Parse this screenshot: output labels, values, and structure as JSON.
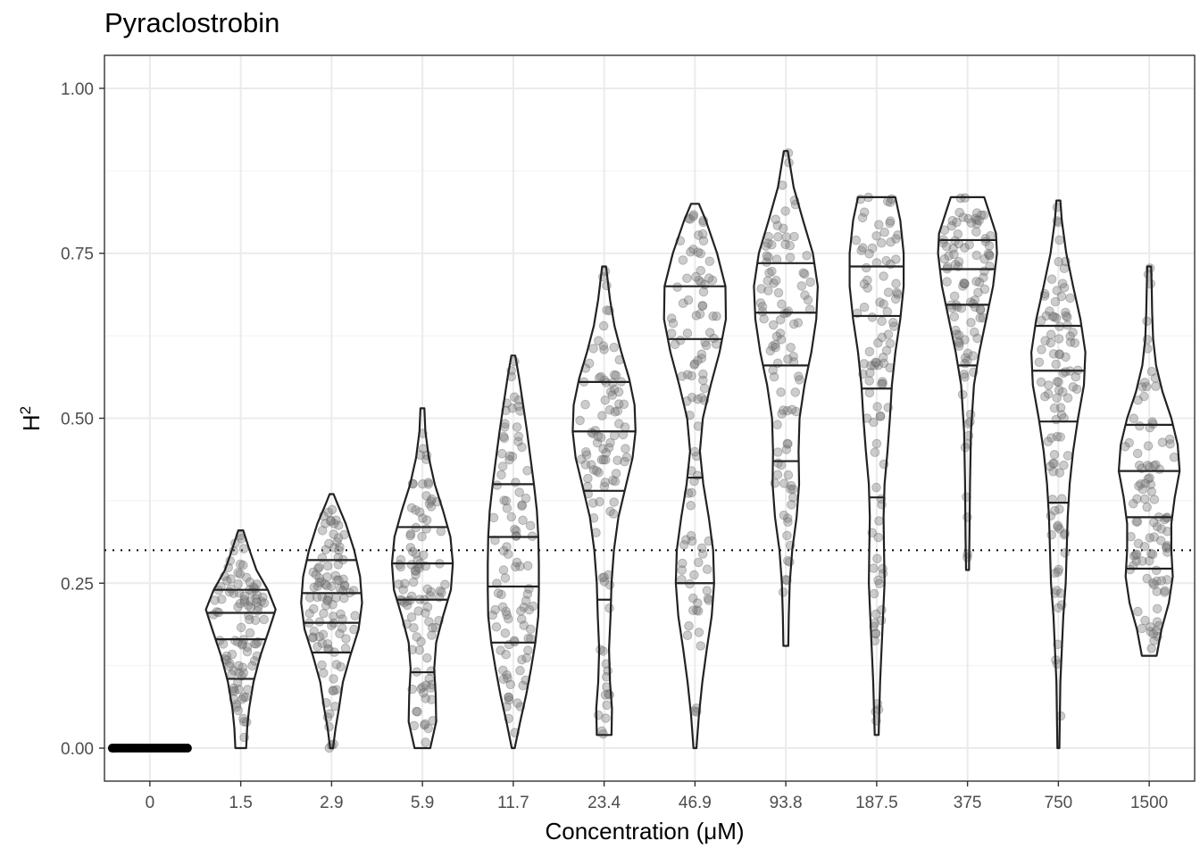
{
  "chart_data": {
    "type": "violin",
    "title": "Pyraclostrobin",
    "xlabel": "Concentration (μM)",
    "ylabel": "H",
    "ylabel_superscript": "2",
    "ylim": [
      -0.05,
      1.05
    ],
    "y_ticks": [
      "0.00",
      "0.25",
      "0.50",
      "0.75",
      "1.00"
    ],
    "reference_line": {
      "y": 0.3,
      "style": "dotted"
    },
    "grid": true,
    "categories": [
      "0",
      "1.5",
      "2.9",
      "5.9",
      "11.7",
      "23.4",
      "46.9",
      "93.8",
      "187.5",
      "375",
      "750",
      "1500"
    ],
    "violins": [
      {
        "category": "0",
        "min": 0,
        "max": 0,
        "quantiles": [],
        "profile": []
      },
      {
        "category": "1.5",
        "min": 0.0,
        "max": 0.33,
        "quantiles": [
          0.105,
          0.165,
          0.205,
          0.24
        ],
        "profile": [
          [
            0.0,
            0.11
          ],
          [
            0.03,
            0.13
          ],
          [
            0.06,
            0.17
          ],
          [
            0.1,
            0.26
          ],
          [
            0.14,
            0.4
          ],
          [
            0.18,
            0.58
          ],
          [
            0.21,
            0.71
          ],
          [
            0.24,
            0.55
          ],
          [
            0.27,
            0.32
          ],
          [
            0.3,
            0.18
          ],
          [
            0.33,
            0.05
          ]
        ]
      },
      {
        "category": "2.9",
        "min": 0.0,
        "max": 0.385,
        "quantiles": [
          0.145,
          0.19,
          0.235,
          0.285
        ],
        "profile": [
          [
            0.0,
            0.03
          ],
          [
            0.03,
            0.08
          ],
          [
            0.06,
            0.15
          ],
          [
            0.1,
            0.23
          ],
          [
            0.14,
            0.38
          ],
          [
            0.18,
            0.55
          ],
          [
            0.22,
            0.62
          ],
          [
            0.26,
            0.58
          ],
          [
            0.3,
            0.46
          ],
          [
            0.34,
            0.29
          ],
          [
            0.37,
            0.12
          ],
          [
            0.385,
            0.04
          ]
        ]
      },
      {
        "category": "5.9",
        "min": 0.0,
        "max": 0.515,
        "quantiles": [
          0.115,
          0.225,
          0.28,
          0.335
        ],
        "profile": [
          [
            0.0,
            0.16
          ],
          [
            0.04,
            0.28
          ],
          [
            0.08,
            0.27
          ],
          [
            0.12,
            0.24
          ],
          [
            0.16,
            0.28
          ],
          [
            0.2,
            0.42
          ],
          [
            0.24,
            0.58
          ],
          [
            0.28,
            0.62
          ],
          [
            0.32,
            0.57
          ],
          [
            0.36,
            0.42
          ],
          [
            0.4,
            0.25
          ],
          [
            0.44,
            0.13
          ],
          [
            0.48,
            0.06
          ],
          [
            0.515,
            0.04
          ]
        ]
      },
      {
        "category": "11.7",
        "min": 0.0,
        "max": 0.595,
        "quantiles": [
          0.16,
          0.245,
          0.32,
          0.4
        ],
        "profile": [
          [
            0.0,
            0.03
          ],
          [
            0.04,
            0.14
          ],
          [
            0.08,
            0.26
          ],
          [
            0.12,
            0.36
          ],
          [
            0.16,
            0.45
          ],
          [
            0.2,
            0.51
          ],
          [
            0.24,
            0.52
          ],
          [
            0.28,
            0.52
          ],
          [
            0.32,
            0.51
          ],
          [
            0.36,
            0.48
          ],
          [
            0.4,
            0.42
          ],
          [
            0.44,
            0.35
          ],
          [
            0.48,
            0.28
          ],
          [
            0.52,
            0.2
          ],
          [
            0.56,
            0.12
          ],
          [
            0.595,
            0.04
          ]
        ]
      },
      {
        "category": "23.4",
        "min": 0.02,
        "max": 0.73,
        "quantiles": [
          0.225,
          0.39,
          0.48,
          0.555
        ],
        "profile": [
          [
            0.02,
            0.15
          ],
          [
            0.06,
            0.16
          ],
          [
            0.1,
            0.12
          ],
          [
            0.15,
            0.1
          ],
          [
            0.2,
            0.13
          ],
          [
            0.25,
            0.15
          ],
          [
            0.3,
            0.2
          ],
          [
            0.35,
            0.29
          ],
          [
            0.4,
            0.45
          ],
          [
            0.44,
            0.58
          ],
          [
            0.48,
            0.64
          ],
          [
            0.52,
            0.62
          ],
          [
            0.56,
            0.51
          ],
          [
            0.6,
            0.35
          ],
          [
            0.64,
            0.21
          ],
          [
            0.68,
            0.12
          ],
          [
            0.73,
            0.04
          ]
        ]
      },
      {
        "category": "46.9",
        "min": 0.0,
        "max": 0.825,
        "quantiles": [
          0.25,
          0.41,
          0.62,
          0.7
        ],
        "profile": [
          [
            0.0,
            0.03
          ],
          [
            0.05,
            0.08
          ],
          [
            0.1,
            0.15
          ],
          [
            0.15,
            0.24
          ],
          [
            0.2,
            0.34
          ],
          [
            0.25,
            0.39
          ],
          [
            0.3,
            0.37
          ],
          [
            0.35,
            0.28
          ],
          [
            0.4,
            0.17
          ],
          [
            0.45,
            0.1
          ],
          [
            0.5,
            0.16
          ],
          [
            0.55,
            0.32
          ],
          [
            0.6,
            0.5
          ],
          [
            0.65,
            0.63
          ],
          [
            0.7,
            0.62
          ],
          [
            0.75,
            0.45
          ],
          [
            0.8,
            0.22
          ],
          [
            0.825,
            0.08
          ]
        ]
      },
      {
        "category": "93.8",
        "min": 0.155,
        "max": 0.905,
        "quantiles": [
          0.435,
          0.58,
          0.66,
          0.735
        ],
        "profile": [
          [
            0.155,
            0.05
          ],
          [
            0.2,
            0.06
          ],
          [
            0.25,
            0.08
          ],
          [
            0.3,
            0.13
          ],
          [
            0.35,
            0.22
          ],
          [
            0.4,
            0.27
          ],
          [
            0.45,
            0.26
          ],
          [
            0.5,
            0.28
          ],
          [
            0.55,
            0.38
          ],
          [
            0.6,
            0.52
          ],
          [
            0.65,
            0.62
          ],
          [
            0.7,
            0.65
          ],
          [
            0.75,
            0.55
          ],
          [
            0.8,
            0.35
          ],
          [
            0.85,
            0.16
          ],
          [
            0.905,
            0.04
          ]
        ]
      },
      {
        "category": "187.5",
        "min": 0.02,
        "max": 0.835,
        "quantiles": [
          0.38,
          0.545,
          0.655,
          0.73
        ],
        "profile": [
          [
            0.02,
            0.04
          ],
          [
            0.1,
            0.07
          ],
          [
            0.2,
            0.13
          ],
          [
            0.25,
            0.16
          ],
          [
            0.3,
            0.15
          ],
          [
            0.35,
            0.14
          ],
          [
            0.4,
            0.16
          ],
          [
            0.45,
            0.22
          ],
          [
            0.5,
            0.27
          ],
          [
            0.55,
            0.31
          ],
          [
            0.6,
            0.38
          ],
          [
            0.65,
            0.48
          ],
          [
            0.7,
            0.55
          ],
          [
            0.75,
            0.55
          ],
          [
            0.8,
            0.48
          ],
          [
            0.835,
            0.38
          ]
        ]
      },
      {
        "category": "375",
        "min": 0.27,
        "max": 0.835,
        "quantiles": [
          0.58,
          0.672,
          0.726,
          0.77
        ],
        "profile": [
          [
            0.27,
            0.03
          ],
          [
            0.32,
            0.04
          ],
          [
            0.4,
            0.05
          ],
          [
            0.48,
            0.07
          ],
          [
            0.55,
            0.13
          ],
          [
            0.6,
            0.24
          ],
          [
            0.65,
            0.38
          ],
          [
            0.7,
            0.52
          ],
          [
            0.75,
            0.6
          ],
          [
            0.78,
            0.58
          ],
          [
            0.81,
            0.45
          ],
          [
            0.835,
            0.34
          ]
        ]
      },
      {
        "category": "750",
        "min": 0.0,
        "max": 0.83,
        "quantiles": [
          0.372,
          0.495,
          0.572,
          0.64
        ],
        "profile": [
          [
            0.0,
            0.02
          ],
          [
            0.1,
            0.04
          ],
          [
            0.2,
            0.1
          ],
          [
            0.25,
            0.15
          ],
          [
            0.3,
            0.17
          ],
          [
            0.35,
            0.19
          ],
          [
            0.4,
            0.23
          ],
          [
            0.45,
            0.3
          ],
          [
            0.5,
            0.4
          ],
          [
            0.55,
            0.52
          ],
          [
            0.6,
            0.55
          ],
          [
            0.65,
            0.45
          ],
          [
            0.7,
            0.3
          ],
          [
            0.75,
            0.16
          ],
          [
            0.8,
            0.07
          ],
          [
            0.83,
            0.04
          ]
        ]
      },
      {
        "category": "1500",
        "min": 0.14,
        "max": 0.73,
        "quantiles": [
          0.272,
          0.35,
          0.42,
          0.49
        ],
        "profile": [
          [
            0.14,
            0.15
          ],
          [
            0.18,
            0.25
          ],
          [
            0.22,
            0.4
          ],
          [
            0.26,
            0.48
          ],
          [
            0.3,
            0.45
          ],
          [
            0.34,
            0.45
          ],
          [
            0.38,
            0.52
          ],
          [
            0.42,
            0.62
          ],
          [
            0.46,
            0.58
          ],
          [
            0.5,
            0.45
          ],
          [
            0.54,
            0.27
          ],
          [
            0.58,
            0.14
          ],
          [
            0.62,
            0.08
          ],
          [
            0.66,
            0.06
          ],
          [
            0.7,
            0.05
          ],
          [
            0.73,
            0.04
          ]
        ]
      }
    ]
  }
}
